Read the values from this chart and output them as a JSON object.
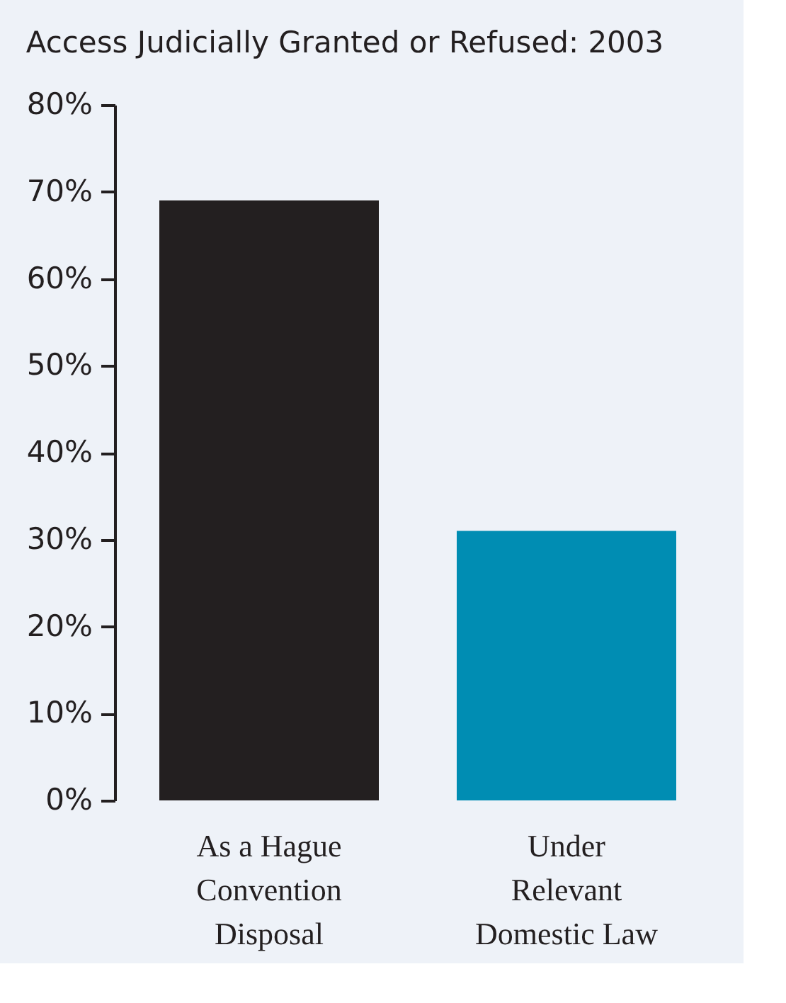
{
  "chart_data": {
    "type": "bar",
    "title": "Access Judicially Granted or Refused: 2003",
    "categories": [
      "As a Hague Convention Disposal",
      "Under Relevant Domestic Law"
    ],
    "values": [
      69,
      31
    ],
    "colors": [
      "#231f20",
      "#008db3"
    ],
    "ylim": [
      0,
      80
    ],
    "yticks": [
      {
        "value": 0,
        "label": "0%"
      },
      {
        "value": 10,
        "label": "10%"
      },
      {
        "value": 20,
        "label": "20%"
      },
      {
        "value": 30,
        "label": "30%"
      },
      {
        "value": 40,
        "label": "40%"
      },
      {
        "value": 50,
        "label": "50%"
      },
      {
        "value": 60,
        "label": "60%"
      },
      {
        "value": 70,
        "label": "70%"
      },
      {
        "value": 80,
        "label": "80%"
      }
    ],
    "grid": false
  }
}
